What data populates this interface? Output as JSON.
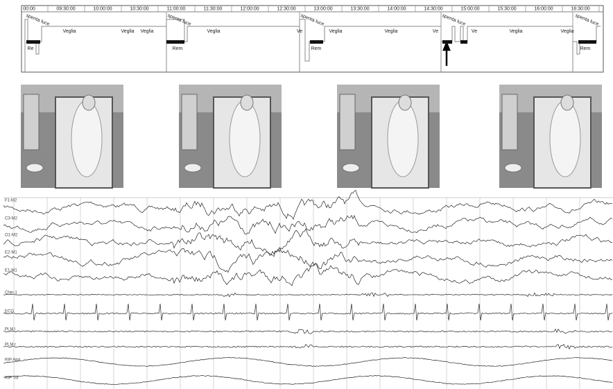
{
  "hypnogram": {
    "time_labels": [
      "00:00",
      "09:30:00",
      "10:00:00",
      "10:30:00",
      "11:00:00",
      "11:30:00",
      "12:00:00",
      "12:30:00",
      "13:00:00",
      "13:30:00",
      "14:00:00",
      "14:30:00",
      "15:00:00",
      "15:30:00",
      "16:00:00",
      "16:30:00"
    ],
    "stage_labels": [
      "spenta luce",
      "Veglia",
      "Veglia",
      "Veglia",
      "Re",
      "spenta luce",
      "Veglia",
      "Rem",
      "spenta luce",
      "Ve",
      "Veglia",
      "Veglia",
      "Ve",
      "Rem",
      "spenta luce",
      "Ve",
      "Veglia",
      "Veglia",
      "spenta luce",
      "Rem"
    ]
  },
  "channels": [
    "F1-M2",
    "C3-M2",
    "O1-M2",
    "E2-M1",
    "E1-M1",
    "Chin-1",
    "ECG",
    "PLM l",
    "PLM r",
    "RIP Abd",
    "RIP Tor"
  ]
}
